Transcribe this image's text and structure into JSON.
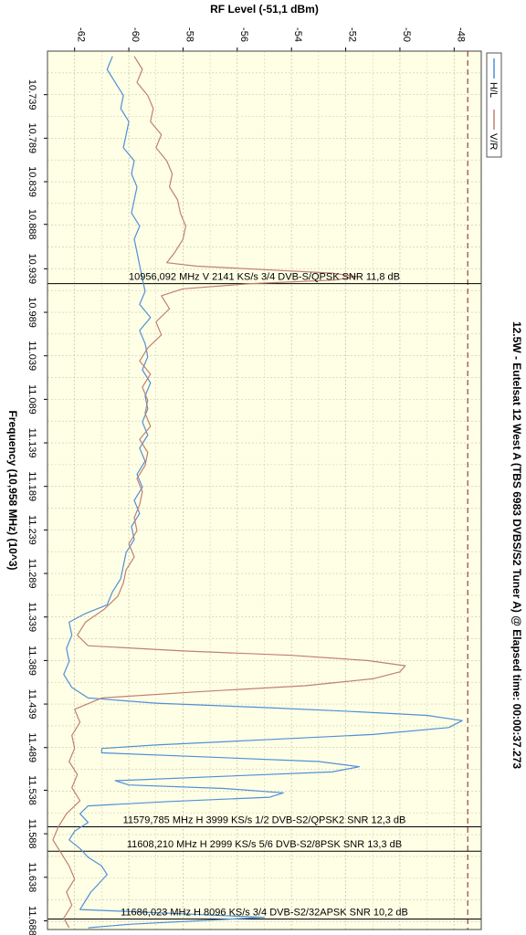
{
  "chart_data": {
    "type": "line",
    "title": "12.5W - Eutelsat 12 West A (TBS 6983 DVBS/S2 Tuner A) @ Elapsed time: 00:00:37.273",
    "rf_axis": {
      "label": "RF Level (-51,1 dBm)",
      "range": [
        -63,
        -47
      ],
      "ticks": [
        "-62",
        "-60",
        "-58",
        "-56",
        "-54",
        "-52",
        "-50",
        "-48"
      ],
      "tick_values": [
        -62,
        -60,
        -58,
        -56,
        -54,
        -52,
        -50,
        -48
      ]
    },
    "freq_axis": {
      "label": "Frequency (10,958 MHz) (10^3)",
      "range": [
        10.689,
        11.698
      ],
      "ticks": [
        "10.739",
        "10.789",
        "10.839",
        "10.888",
        "10.939",
        "10.989",
        "11.039",
        "11.089",
        "11.139",
        "11.189",
        "11.239",
        "11.289",
        "11.339",
        "11.389",
        "11.439",
        "11.489",
        "11.538",
        "11.588",
        "11.638",
        "11.688"
      ],
      "tick_values": [
        10.739,
        10.789,
        10.839,
        10.888,
        10.939,
        10.989,
        11.039,
        11.089,
        11.139,
        11.189,
        11.239,
        11.289,
        11.339,
        11.389,
        11.439,
        11.489,
        11.538,
        11.588,
        11.638,
        11.688
      ]
    },
    "grid": true,
    "background_color": "#ffffe6",
    "legend_position": "right-top",
    "series": [
      {
        "name": "H/L",
        "color": "#4f8fd8",
        "points": [
          [
            10.695,
            -60.6
          ],
          [
            10.71,
            -60.8
          ],
          [
            10.725,
            -60.5
          ],
          [
            10.74,
            -60.2
          ],
          [
            10.755,
            -60.3
          ],
          [
            10.77,
            -60.0
          ],
          [
            10.785,
            -60.1
          ],
          [
            10.8,
            -60.2
          ],
          [
            10.815,
            -59.8
          ],
          [
            10.83,
            -59.9
          ],
          [
            10.845,
            -59.7
          ],
          [
            10.86,
            -59.8
          ],
          [
            10.875,
            -59.9
          ],
          [
            10.89,
            -59.6
          ],
          [
            10.905,
            -59.8
          ],
          [
            10.92,
            -59.7
          ],
          [
            10.935,
            -59.6
          ],
          [
            10.95,
            -59.5
          ],
          [
            10.965,
            -59.4
          ],
          [
            10.98,
            -59.6
          ],
          [
            10.995,
            -59.2
          ],
          [
            11.01,
            -59.6
          ],
          [
            11.025,
            -59.4
          ],
          [
            11.04,
            -59.3
          ],
          [
            11.055,
            -59.5
          ],
          [
            11.07,
            -59.2
          ],
          [
            11.085,
            -59.4
          ],
          [
            11.1,
            -59.3
          ],
          [
            11.115,
            -59.5
          ],
          [
            11.13,
            -59.3
          ],
          [
            11.145,
            -59.6
          ],
          [
            11.16,
            -59.4
          ],
          [
            11.175,
            -59.7
          ],
          [
            11.19,
            -59.5
          ],
          [
            11.205,
            -59.8
          ],
          [
            11.22,
            -59.6
          ],
          [
            11.235,
            -59.9
          ],
          [
            11.25,
            -59.8
          ],
          [
            11.265,
            -60.1
          ],
          [
            11.28,
            -60.2
          ],
          [
            11.295,
            -60.3
          ],
          [
            11.31,
            -60.6
          ],
          [
            11.325,
            -60.8
          ],
          [
            11.335,
            -61.6
          ],
          [
            11.345,
            -62.2
          ],
          [
            11.36,
            -62.1
          ],
          [
            11.375,
            -62.3
          ],
          [
            11.39,
            -62.2
          ],
          [
            11.405,
            -62.4
          ],
          [
            11.42,
            -62.1
          ],
          [
            11.432,
            -61.5
          ],
          [
            11.438,
            -59.0
          ],
          [
            11.443,
            -55.0
          ],
          [
            11.448,
            -51.5
          ],
          [
            11.452,
            -49.0
          ],
          [
            11.458,
            -47.7
          ],
          [
            11.466,
            -48.2
          ],
          [
            11.474,
            -51.0
          ],
          [
            11.48,
            -55.0
          ],
          [
            11.486,
            -59.0
          ],
          [
            11.49,
            -61.0
          ],
          [
            11.495,
            -61.0
          ],
          [
            11.5,
            -57.0
          ],
          [
            11.505,
            -53.0
          ],
          [
            11.511,
            -51.5
          ],
          [
            11.517,
            -52.5
          ],
          [
            11.522,
            -56.5
          ],
          [
            11.527,
            -60.5
          ],
          [
            11.532,
            -60.0
          ],
          [
            11.536,
            -56.5
          ],
          [
            11.541,
            -54.3
          ],
          [
            11.546,
            -54.8
          ],
          [
            11.551,
            -58.5
          ],
          [
            11.556,
            -61.5
          ],
          [
            11.565,
            -61.8
          ],
          [
            11.575,
            -61.5
          ],
          [
            11.585,
            -62.0
          ],
          [
            11.595,
            -62.2
          ],
          [
            11.605,
            -61.8
          ],
          [
            11.615,
            -61.5
          ],
          [
            11.625,
            -61.0
          ],
          [
            11.635,
            -60.8
          ],
          [
            11.645,
            -61.1
          ],
          [
            11.655,
            -61.4
          ],
          [
            11.665,
            -61.6
          ],
          [
            11.675,
            -61.8
          ],
          [
            11.68,
            -58.0
          ],
          [
            11.684,
            -55.0
          ],
          [
            11.688,
            -57.5
          ],
          [
            11.692,
            -60.0
          ],
          [
            11.696,
            -61.5
          ]
        ]
      },
      {
        "name": "V/R",
        "color": "#c08070",
        "points": [
          [
            10.695,
            -59.8
          ],
          [
            10.71,
            -59.5
          ],
          [
            10.725,
            -59.7
          ],
          [
            10.74,
            -59.3
          ],
          [
            10.755,
            -59.1
          ],
          [
            10.77,
            -59.2
          ],
          [
            10.785,
            -58.8
          ],
          [
            10.8,
            -59.0
          ],
          [
            10.815,
            -58.6
          ],
          [
            10.83,
            -58.4
          ],
          [
            10.845,
            -58.5
          ],
          [
            10.86,
            -58.2
          ],
          [
            10.875,
            -58.1
          ],
          [
            10.89,
            -57.9
          ],
          [
            10.905,
            -58.0
          ],
          [
            10.92,
            -58.3
          ],
          [
            10.932,
            -58.6
          ],
          [
            10.936,
            -57.5
          ],
          [
            10.94,
            -55.0
          ],
          [
            10.944,
            -52.5
          ],
          [
            10.948,
            -51.6
          ],
          [
            10.952,
            -52.4
          ],
          [
            10.956,
            -55.5
          ],
          [
            10.962,
            -58.0
          ],
          [
            10.97,
            -58.8
          ],
          [
            10.985,
            -58.5
          ],
          [
            11.0,
            -59.0
          ],
          [
            11.015,
            -58.8
          ],
          [
            11.03,
            -59.3
          ],
          [
            11.045,
            -59.6
          ],
          [
            11.06,
            -59.2
          ],
          [
            11.075,
            -59.5
          ],
          [
            11.09,
            -59.3
          ],
          [
            11.105,
            -59.4
          ],
          [
            11.12,
            -59.2
          ],
          [
            11.135,
            -59.6
          ],
          [
            11.15,
            -59.3
          ],
          [
            11.165,
            -59.4
          ],
          [
            11.18,
            -59.7
          ],
          [
            11.195,
            -59.5
          ],
          [
            11.21,
            -59.6
          ],
          [
            11.225,
            -59.8
          ],
          [
            11.24,
            -59.7
          ],
          [
            11.255,
            -60.0
          ],
          [
            11.27,
            -59.8
          ],
          [
            11.285,
            -60.1
          ],
          [
            11.3,
            -60.2
          ],
          [
            11.315,
            -60.4
          ],
          [
            11.33,
            -60.9
          ],
          [
            11.345,
            -61.6
          ],
          [
            11.36,
            -61.9
          ],
          [
            11.372,
            -61.5
          ],
          [
            11.378,
            -58.0
          ],
          [
            11.383,
            -54.0
          ],
          [
            11.389,
            -51.2
          ],
          [
            11.395,
            -49.8
          ],
          [
            11.402,
            -50.0
          ],
          [
            11.41,
            -51.0
          ],
          [
            11.418,
            -53.5
          ],
          [
            11.425,
            -57.5
          ],
          [
            11.432,
            -61.0
          ],
          [
            11.445,
            -62.0
          ],
          [
            11.46,
            -61.8
          ],
          [
            11.475,
            -62.1
          ],
          [
            11.49,
            -62.0
          ],
          [
            11.505,
            -62.2
          ],
          [
            11.52,
            -61.9
          ],
          [
            11.535,
            -62.1
          ],
          [
            11.55,
            -61.8
          ],
          [
            11.565,
            -62.3
          ],
          [
            11.58,
            -62.6
          ],
          [
            11.595,
            -62.8
          ],
          [
            11.61,
            -62.5
          ],
          [
            11.625,
            -62.2
          ],
          [
            11.64,
            -62.0
          ],
          [
            11.655,
            -62.3
          ],
          [
            11.67,
            -62.1
          ],
          [
            11.685,
            -62.4
          ],
          [
            11.696,
            -62.2
          ]
        ]
      }
    ],
    "annotations": [
      {
        "frequency": 10.956,
        "text": "10956,092 MHz V 2141 KS/s 3/4 DVB-S/QPSK SNR 11,8 dB"
      },
      {
        "frequency": 11.58,
        "text": "11579,785 MHz H 3999 KS/s 1/2 DVB-S2/QPSK2 SNR 12,3 dB"
      },
      {
        "frequency": 11.608,
        "text": "11608,210 MHz H 2999 KS/s 5/6 DVB-S2/8PSK SNR 13,3 dB"
      },
      {
        "frequency": 11.686,
        "text": "11686,023 MHz H 8096 KS/s 3/4 DVB-S2/32APSK SNR 10,2 dB"
      }
    ],
    "reference_rf_level": -47.5
  }
}
